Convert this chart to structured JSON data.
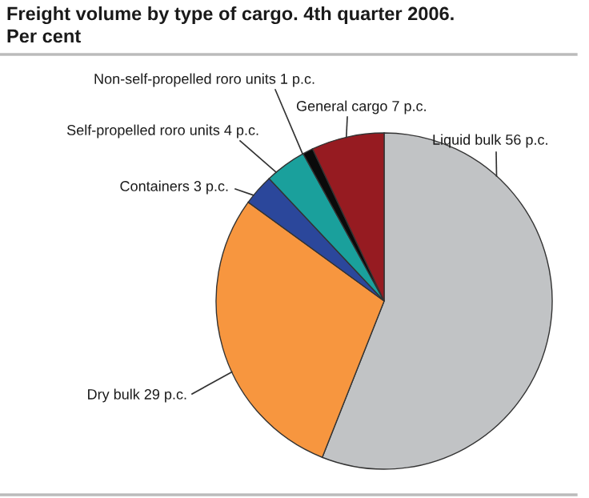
{
  "chart_data": {
    "type": "pie",
    "title": "Freight volume by type of cargo. 4th quarter 2006.",
    "subtitle": "Per cent",
    "categories": [
      "Liquid bulk 56 p.c.",
      "Dry bulk 29 p.c.",
      "Containers 3 p.c.",
      "Self-propelled roro units 4 p.c.",
      "Non-self-propelled roro units 1 p.c.",
      "General cargo 7 p.c."
    ],
    "values": [
      56,
      29,
      3,
      4,
      1,
      7
    ],
    "colors": [
      "#c1c3c5",
      "#f7963f",
      "#2b479b",
      "#1aa09c",
      "#0a0a0a",
      "#961b21"
    ]
  }
}
